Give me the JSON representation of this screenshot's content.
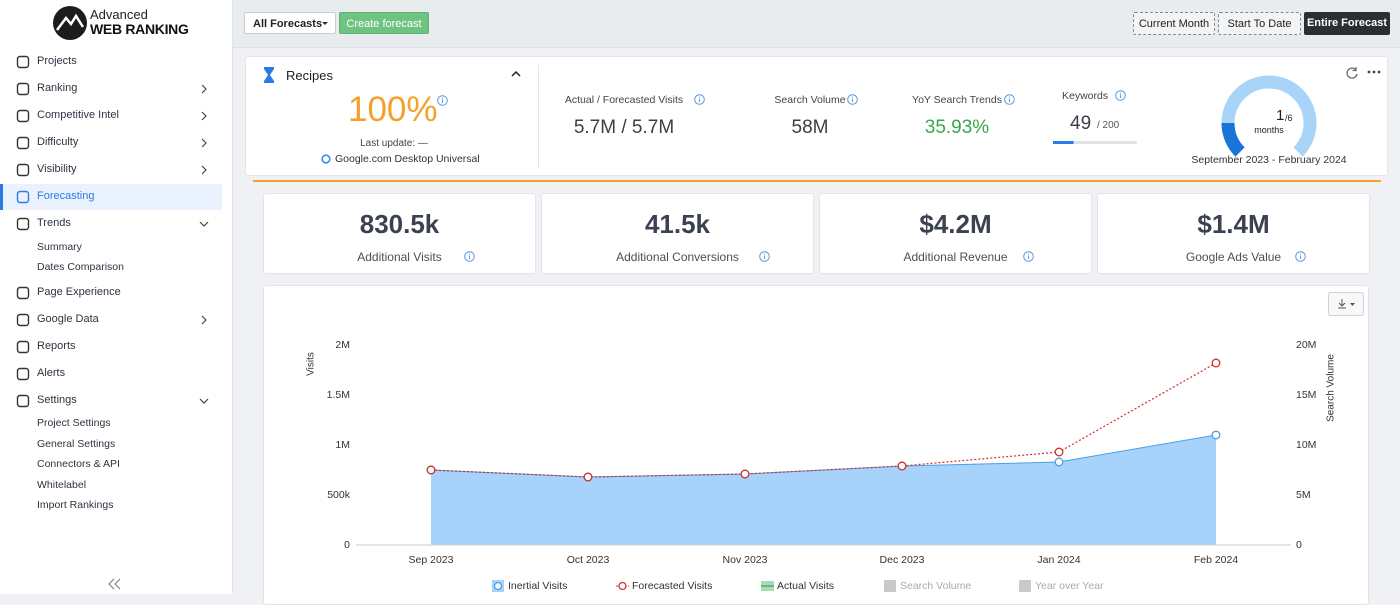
{
  "sidebar": {
    "logo": [
      "Advanced",
      "WEB RANKING"
    ],
    "nav": [
      {
        "label": "Projects"
      },
      {
        "label": "Ranking",
        "chevron": "right"
      },
      {
        "label": "Competitive Intel",
        "chevron": "right"
      },
      {
        "label": "Difficulty",
        "chevron": "right"
      },
      {
        "label": "Visibility",
        "chevron": "right"
      },
      {
        "label": "Forecasting",
        "active": true
      },
      {
        "label": "Trends",
        "chevron": "down"
      },
      {
        "label": "Summary",
        "sub": true
      },
      {
        "label": "Dates Comparison",
        "sub": true
      },
      {
        "label": "Page Experience"
      },
      {
        "label": "Google Data",
        "chevron": "right"
      },
      {
        "label": "Reports"
      },
      {
        "label": "Alerts"
      },
      {
        "label": "Settings",
        "chevron": "down"
      },
      {
        "label": "Project Settings",
        "sub": true
      },
      {
        "label": "General Settings",
        "sub": true
      },
      {
        "label": "Connectors & API",
        "sub": true
      },
      {
        "label": "Whitelabel",
        "sub": true
      },
      {
        "label": "Import Rankings",
        "sub": true
      }
    ]
  },
  "topbar": {
    "filter": "All Forecasts",
    "create": "Create forecast",
    "ranges": [
      {
        "label": "Current Month"
      },
      {
        "label": "Start To Date"
      },
      {
        "label": "Entire Forecast",
        "active": true
      }
    ]
  },
  "summary": {
    "name": "Recipes",
    "percent": "100%",
    "last_update": "Last update: —",
    "engine": "Google.com Desktop Universal",
    "metrics": [
      {
        "label": "Actual / Forecasted Visits",
        "value": "5.7M / 5.7M"
      },
      {
        "label": "Search Volume",
        "value": "58M"
      },
      {
        "label": "YoY Search Trends",
        "value": "35.93%",
        "color": "#3aa64a"
      }
    ],
    "keywords": {
      "label": "Keywords",
      "value": 49,
      "max": {
        "value": 200,
        "label": "/ 200"
      }
    },
    "gauge": {
      "value": 1,
      "max": {
        "value": 6,
        "label": "/6"
      },
      "unit": "months"
    },
    "period": "September 2023 - February 2024"
  },
  "kpis": [
    {
      "value": "830.5k",
      "label": "Additional Visits"
    },
    {
      "value": "41.5k",
      "label": "Additional Conversions"
    },
    {
      "value": "$4.2M",
      "label": "Additional Revenue"
    },
    {
      "value": "$1.4M",
      "label": "Google Ads Value"
    }
  ],
  "chart_data": {
    "type": "line",
    "ylabel": "Visits",
    "y2label": "Search Volume",
    "categories": [
      "Sep 2023",
      "Oct 2023",
      "Nov 2023",
      "Dec 2023",
      "Jan 2024",
      "Feb 2024"
    ],
    "ylim": [
      0,
      2000000
    ],
    "yticks": [
      0,
      {
        "value": 500000,
        "label": "500k"
      },
      {
        "value": 1000000,
        "label": "1M"
      },
      {
        "value": 1500000,
        "label": "1.5M"
      },
      {
        "value": 2000000,
        "label": "2M"
      }
    ],
    "y2lim": [
      0,
      20000000
    ],
    "y2ticks": [
      0,
      {
        "value": 5000000,
        "label": "5M"
      },
      {
        "value": 10000000,
        "label": "10M"
      },
      {
        "value": 15000000,
        "label": "15M"
      },
      {
        "value": 20000000,
        "label": "20M"
      }
    ],
    "grid": false,
    "legend": "bottom",
    "series": [
      {
        "name": "Inertial Visits",
        "color": "#4a9fe6",
        "fill": "#a7d3fb",
        "values": [
          750000,
          680000,
          710000,
          790000,
          830000,
          1100000
        ]
      },
      {
        "name": "Forecasted Visits",
        "color": "#d2302c",
        "dashed": true,
        "values": [
          750000,
          680000,
          710000,
          790000,
          930000,
          1820000
        ]
      },
      {
        "name": "Actual Visits",
        "color": "#4caf6a",
        "values": [
          null,
          null,
          null,
          null,
          null,
          null
        ]
      },
      {
        "name": "Search Volume",
        "color": "#c9c9c9",
        "axis": "y2",
        "hidden": true,
        "values": [
          null,
          null,
          null,
          null,
          null,
          null
        ]
      },
      {
        "name": "Year over Year",
        "color": "#c9c9c9",
        "hidden": true,
        "values": [
          null,
          null,
          null,
          null,
          null,
          null
        ]
      }
    ]
  }
}
